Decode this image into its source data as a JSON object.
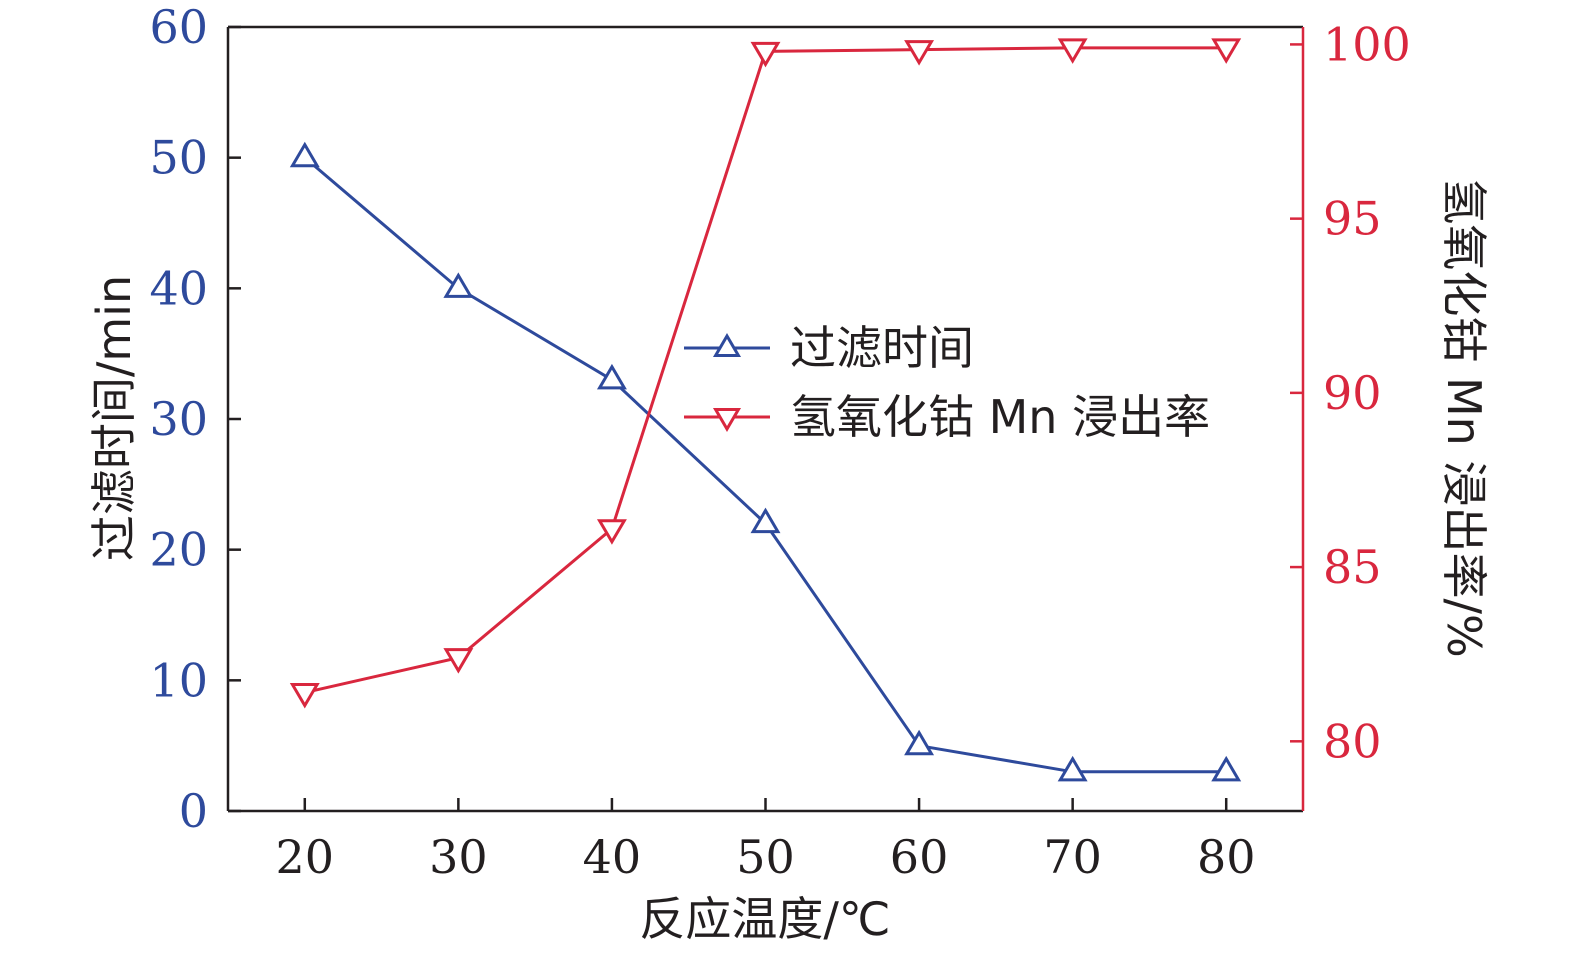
{
  "chart_data": {
    "type": "line",
    "xlabel": "反应温度/℃",
    "ylabel_left": "过滤时间/min",
    "ylabel_right": "氢氧化钴 Mn 浸出率/%",
    "x": [
      20,
      30,
      40,
      50,
      60,
      70,
      80
    ],
    "x_ticks": [
      "20",
      "30",
      "40",
      "50",
      "60",
      "70",
      "80"
    ],
    "x_range": [
      15,
      85
    ],
    "y_left_range": [
      0,
      60
    ],
    "y_left_ticks": [
      "0",
      "10",
      "20",
      "30",
      "40",
      "50",
      "60"
    ],
    "y_right_range": [
      78,
      100.5
    ],
    "y_right_ticks": [
      "80",
      "85",
      "90",
      "95",
      "100"
    ],
    "legend_placement": "center",
    "series": [
      {
        "name": "过滤时间",
        "axis": "left",
        "marker": "triangle-up",
        "color": "#2e4a9c",
        "values": [
          50,
          40,
          33,
          22,
          5,
          3,
          3
        ]
      },
      {
        "name": "氢氧化钴 Mn 浸出率",
        "axis": "right",
        "marker": "triangle-down",
        "color": "#d9273e",
        "values": [
          81.4,
          82.4,
          86.1,
          99.8,
          99.85,
          99.9,
          99.9
        ]
      }
    ],
    "colors": {
      "left_axis": "#2e4a9c",
      "right_axis": "#d9273e",
      "frame": "#231f20"
    }
  }
}
